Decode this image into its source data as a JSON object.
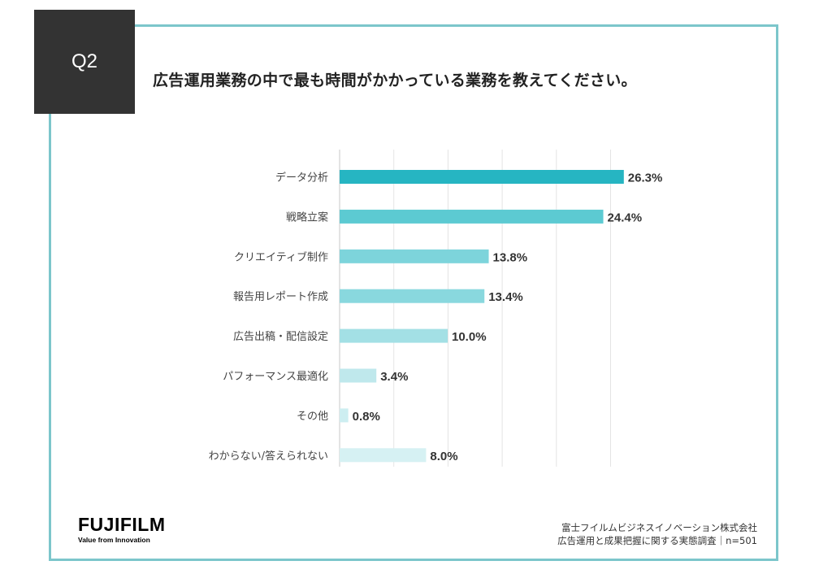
{
  "question": {
    "badge": "Q2",
    "title": "広告運用業務の中で最も時間がかかっている業務を教えてください。"
  },
  "chart_data": {
    "type": "bar",
    "orientation": "horizontal",
    "categories": [
      "データ分析",
      "戦略立案",
      "クリエイティブ制作",
      "報告用レポート作成",
      "広告出稿・配信設定",
      "パフォーマンス最適化",
      "その他",
      "わからない/答えられない"
    ],
    "values": [
      26.3,
      24.4,
      13.8,
      13.4,
      10.0,
      3.4,
      0.8,
      8.0
    ],
    "data_labels": [
      "26.3%",
      "24.4%",
      "13.8%",
      "13.4%",
      "10.0%",
      "3.4%",
      "0.8%",
      "8.0%"
    ],
    "bar_colors": [
      "#26b5c2",
      "#5ccad2",
      "#7dd4db",
      "#89d8de",
      "#a3e0e5",
      "#bfe8ec",
      "#cdeef1",
      "#d6f1f3"
    ],
    "xlim": [
      0,
      30
    ],
    "grid": true,
    "legend": "none"
  },
  "footer": {
    "logo_text": "FUJIFILM",
    "logo_tagline": "Value from Innovation",
    "source_line1": "富士フイルムビジネスイノベーション株式会社",
    "source_line2": "広告運用と成果把握に関する実態調査｜n=501"
  }
}
